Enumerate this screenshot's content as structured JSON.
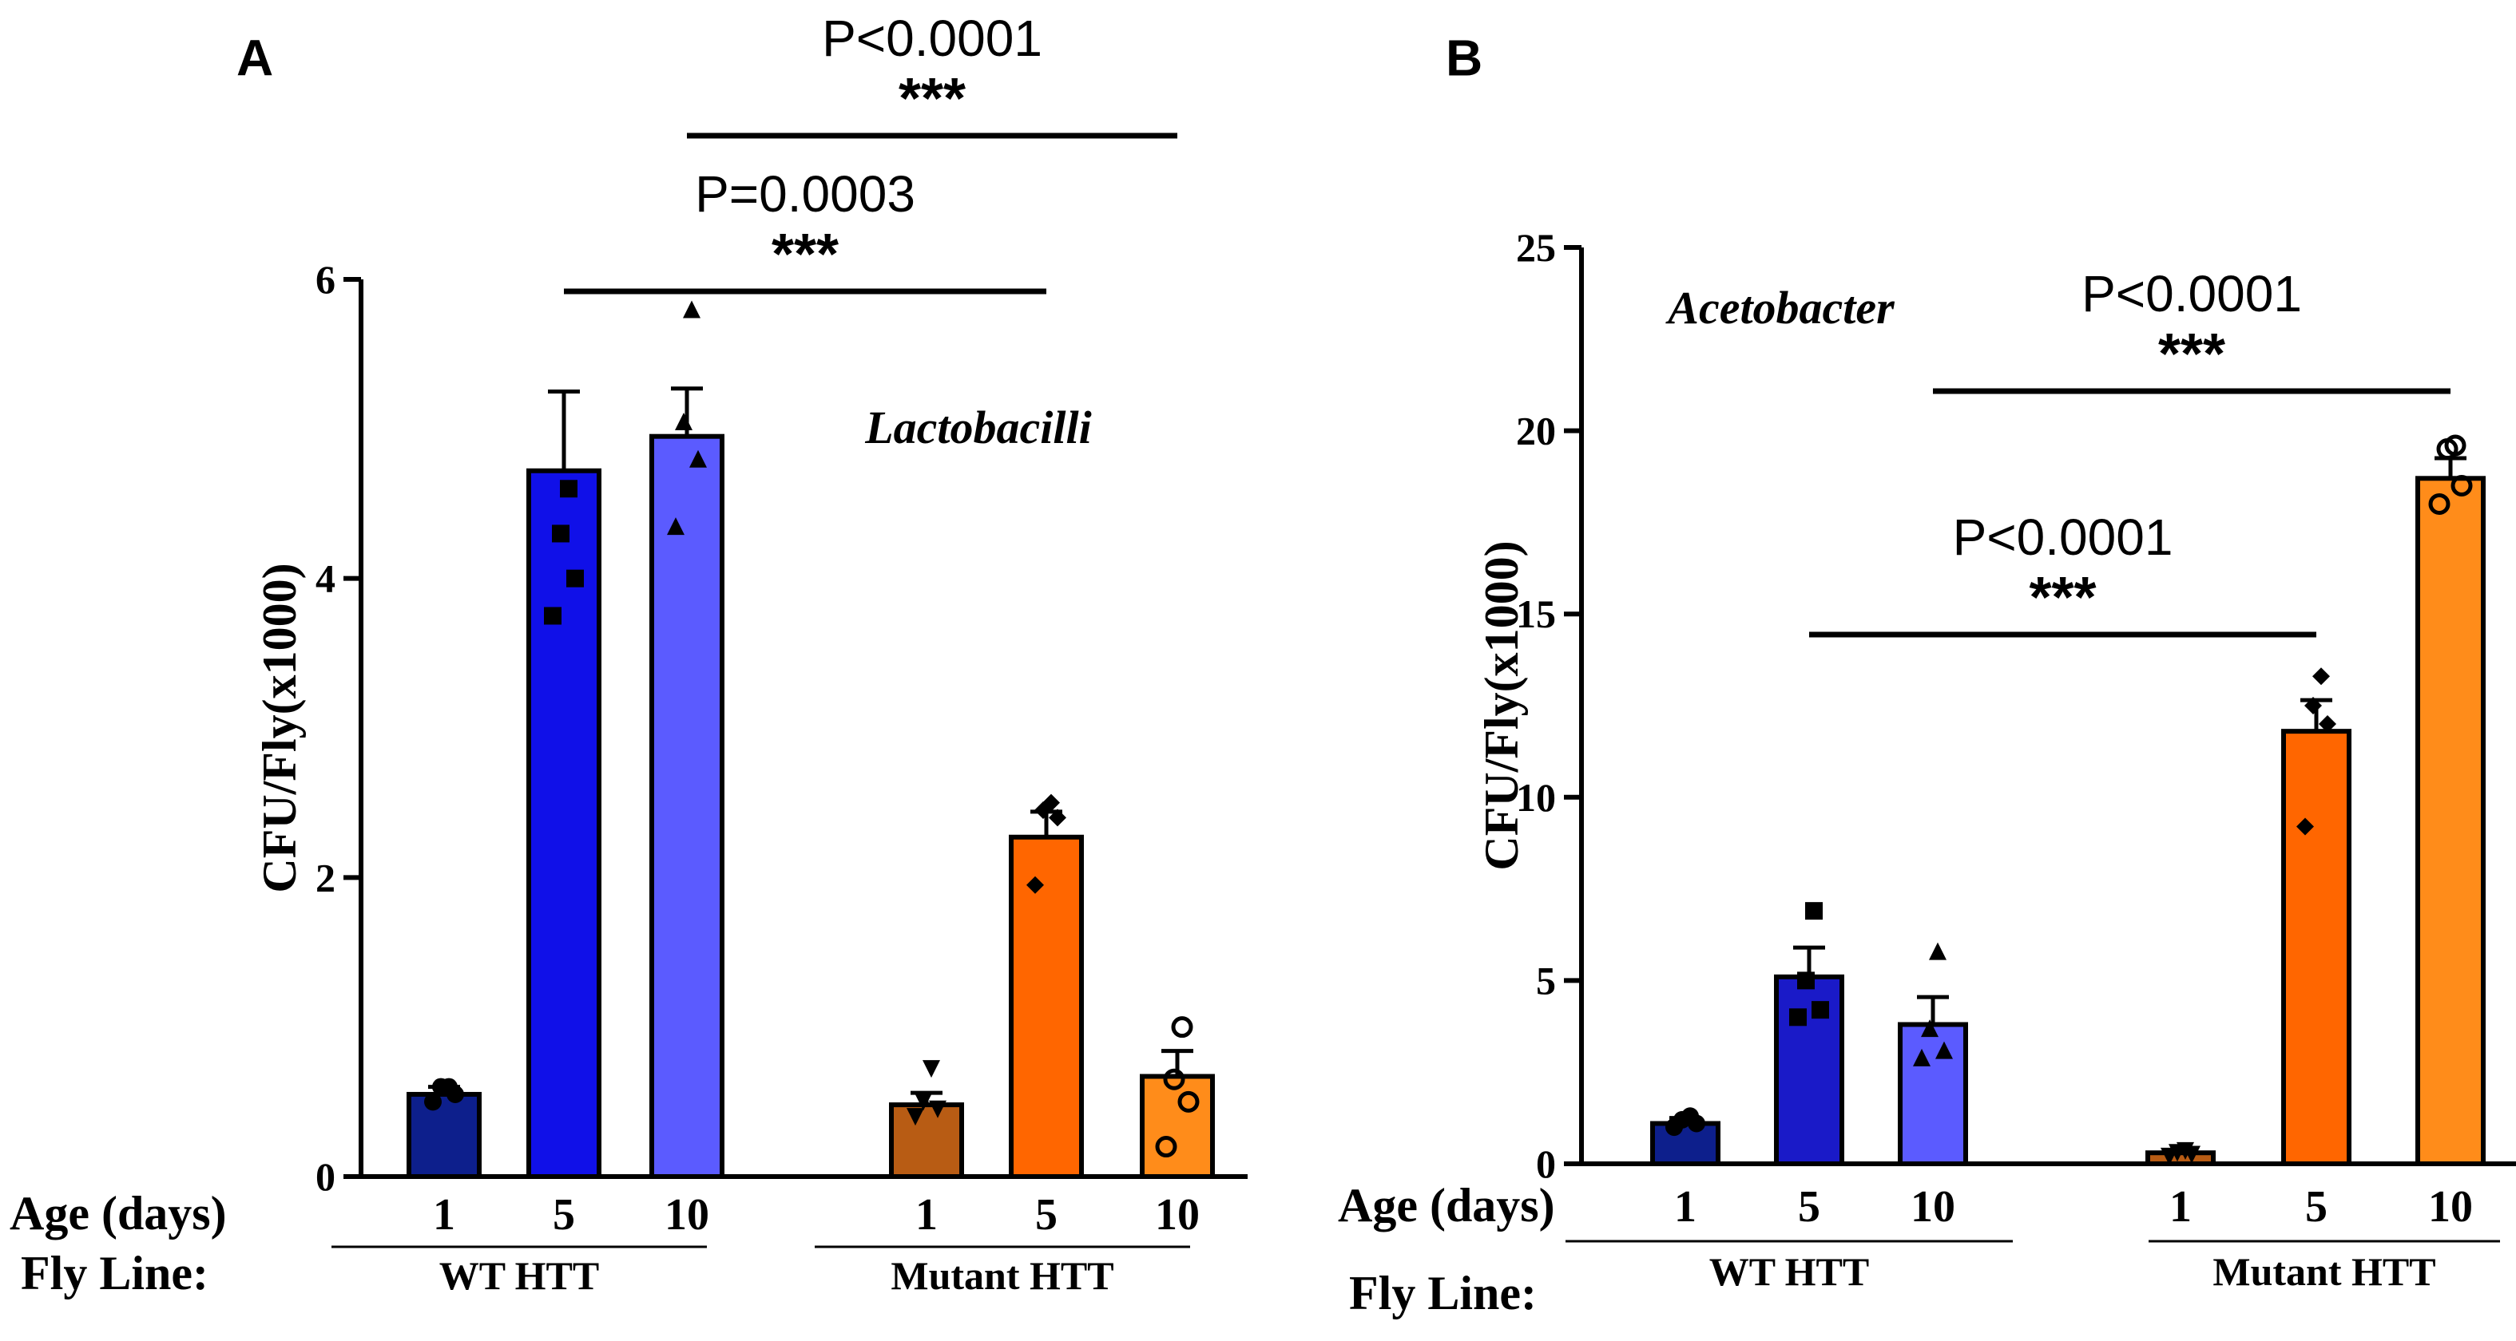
{
  "chart_data": [
    {
      "panel": "A",
      "type": "bar",
      "species_label": "Lactobacilli",
      "ylabel": "CFU/Fly(x1000)",
      "ylim": [
        0,
        6
      ],
      "yticks": [
        0,
        2,
        4,
        6
      ],
      "x_row_label": "Age (days)",
      "group_row_label": "Fly Line:",
      "groups": [
        "WT HTT",
        "Mutant HTT"
      ],
      "bars": [
        {
          "group": "WT HTT",
          "age": "1",
          "value": 0.55,
          "sem": 0.05,
          "color": "#0d1f8c",
          "marker": "circle",
          "points": [
            0.5,
            0.55,
            0.6,
            0.6
          ]
        },
        {
          "group": "WT HTT",
          "age": "5",
          "value": 4.72,
          "sem": 0.53,
          "color": "#1010e8",
          "marker": "square",
          "points": [
            3.75,
            4.0,
            4.3,
            4.6
          ]
        },
        {
          "group": "WT HTT",
          "age": "10",
          "value": 4.95,
          "sem": 0.32,
          "color": "#5b5bff",
          "marker": "triangle-up",
          "points": [
            4.35,
            4.8,
            5.05,
            5.8
          ]
        },
        {
          "group": "Mutant HTT",
          "age": "1",
          "value": 0.48,
          "sem": 0.08,
          "color": "#b85c14",
          "marker": "triangle-down",
          "points": [
            0.4,
            0.45,
            0.5,
            0.72
          ]
        },
        {
          "group": "Mutant HTT",
          "age": "5",
          "value": 2.27,
          "sem": 0.17,
          "color": "#ff6600",
          "marker": "diamond",
          "points": [
            1.95,
            2.4,
            2.45,
            2.5
          ]
        },
        {
          "group": "Mutant HTT",
          "age": "10",
          "value": 0.67,
          "sem": 0.17,
          "color": "#ff8c1a",
          "marker": "circle-open",
          "points": [
            0.2,
            0.5,
            0.65,
            1.0
          ]
        }
      ],
      "comparisons": [
        {
          "from_bar": 1,
          "to_bar": 4,
          "label": "P=0.0003",
          "stars": "***",
          "level": 1
        },
        {
          "from_bar": 2,
          "to_bar": 5,
          "label": "P<0.0001",
          "stars": "***",
          "level": 2
        }
      ]
    },
    {
      "panel": "B",
      "type": "bar",
      "species_label": "Acetobacter",
      "ylabel": "CFU/Fly(x1000)",
      "ylim": [
        0,
        25
      ],
      "yticks": [
        0,
        5,
        10,
        15,
        20,
        25
      ],
      "x_row_label": "Age (days)",
      "group_row_label": "Fly Line:",
      "groups": [
        "WT HTT",
        "Mutant HTT"
      ],
      "bars": [
        {
          "group": "WT HTT",
          "age": "1",
          "value": 1.1,
          "sem": 0.15,
          "color": "#0d1f8c",
          "marker": "circle",
          "points": [
            1.0,
            1.1,
            1.2,
            1.3
          ]
        },
        {
          "group": "WT HTT",
          "age": "5",
          "value": 5.1,
          "sem": 0.8,
          "color": "#1a1ac8",
          "marker": "square",
          "points": [
            4.0,
            4.2,
            5.0,
            6.9
          ]
        },
        {
          "group": "WT HTT",
          "age": "10",
          "value": 3.8,
          "sem": 0.75,
          "color": "#5b5bff",
          "marker": "triangle-up",
          "points": [
            2.9,
            3.1,
            3.7,
            5.8
          ]
        },
        {
          "group": "Mutant HTT",
          "age": "1",
          "value": 0.3,
          "sem": 0.05,
          "color": "#b85c14",
          "marker": "triangle-down",
          "points": [
            0.2,
            0.25,
            0.3,
            0.35
          ]
        },
        {
          "group": "Mutant HTT",
          "age": "5",
          "value": 11.8,
          "sem": 0.85,
          "color": "#ff6600",
          "marker": "diamond",
          "points": [
            9.2,
            12.0,
            12.5,
            13.3
          ]
        },
        {
          "group": "Mutant HTT",
          "age": "10",
          "value": 18.7,
          "sem": 0.55,
          "color": "#ff8c1a",
          "marker": "circle-open",
          "points": [
            18.0,
            18.5,
            19.5,
            19.6
          ]
        }
      ],
      "comparisons": [
        {
          "from_bar": 1,
          "to_bar": 4,
          "label": "P<0.0001",
          "stars": "***",
          "level": 1
        },
        {
          "from_bar": 2,
          "to_bar": 5,
          "label": "P<0.0001",
          "stars": "***",
          "level": 2
        }
      ]
    }
  ]
}
